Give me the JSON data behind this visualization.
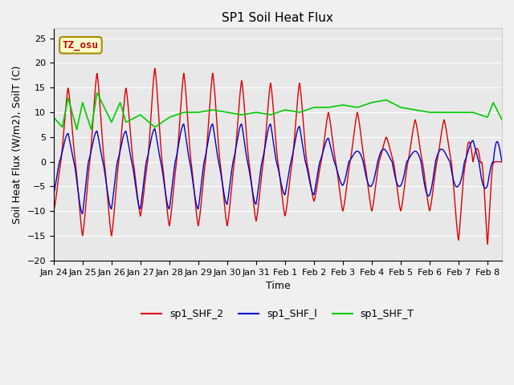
{
  "title": "SP1 Soil Heat Flux",
  "xlabel": "Time",
  "ylabel": "Soil Heat Flux (W/m2), SoilT (C)",
  "ylim": [
    -20,
    27
  ],
  "background_color": "#f0f0f0",
  "plot_bg_color": "#e8e8e8",
  "legend_labels": [
    "sp1_SHF_2",
    "sp1_SHF_l",
    "sp1_SHF_T"
  ],
  "legend_colors": [
    "#dd0000",
    "#0000cc",
    "#00cc00"
  ],
  "tz_label": "TZ_osu",
  "x_tick_labels": [
    "Jan 24",
    "Jan 25",
    "Jan 26",
    "Jan 27",
    "Jan 28",
    "Jan 29",
    "Jan 30",
    "Jan 31",
    "Feb 1",
    "Feb 2",
    "Feb 3",
    "Feb 4",
    "Feb 5",
    "Feb 6",
    "Feb 7",
    "Feb 8"
  ],
  "grid_color": "#ffffff",
  "title_fontsize": 11,
  "label_fontsize": 9,
  "tick_fontsize": 8
}
